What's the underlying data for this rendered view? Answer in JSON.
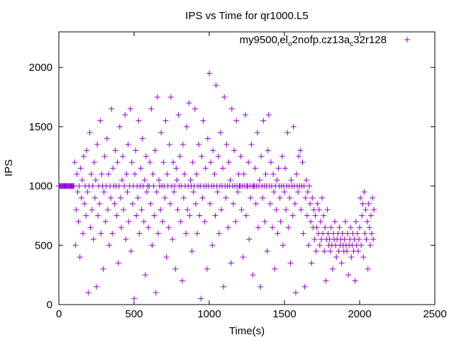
{
  "chart_data": {
    "type": "scatter",
    "title": "IPS vs Time for qr1000.L5",
    "xlabel": "Time(s)",
    "ylabel": "IPS",
    "xlim": [
      0,
      2500
    ],
    "ylim": [
      0,
      2300
    ],
    "xticks": [
      "0",
      "500",
      "1000",
      "1500",
      "2000",
      "2500"
    ],
    "xtick_values": [
      0,
      500,
      1000,
      1500,
      2000,
      2500
    ],
    "yticks": [
      "0",
      "500",
      "1000",
      "1500",
      "2000"
    ],
    "ytick_values": [
      0,
      500,
      1000,
      1500,
      2000
    ],
    "grid": false,
    "legend_position": "top-right",
    "series": [
      {
        "name": "my9500_rel_o2nofp.cz13a_c32r128",
        "legend_parts": [
          "my9500",
          "r",
          "el",
          "o",
          "2nofp.cz13a",
          "c",
          "32r128"
        ],
        "color": "#9400d3",
        "marker": "plus",
        "x_start": 0,
        "x_step": 5,
        "y": [
          1000,
          1000,
          1000,
          1000,
          1000,
          1000,
          1000,
          1000,
          1000,
          1000,
          1000,
          1000,
          1000,
          1000,
          1000,
          1000,
          1000,
          1000,
          1000,
          1000,
          1000,
          1200,
          500,
          800,
          1100,
          950,
          700,
          1000,
          400,
          1150,
          900,
          1050,
          600,
          1250,
          850,
          1000,
          750,
          1300,
          950,
          100,
          1000,
          1450,
          650,
          1100,
          800,
          1000,
          550,
          1200,
          900,
          1050,
          150,
          1350,
          750,
          1000,
          850,
          1550,
          600,
          1100,
          1000,
          300,
          950,
          1250,
          700,
          1000,
          1400,
          800,
          1100,
          500,
          1000,
          900,
          1650,
          600,
          1150,
          1000,
          850,
          1300,
          1000,
          750,
          1200,
          350,
          1000,
          1500,
          900,
          650,
          1050,
          1250,
          800,
          1000,
          1600,
          550,
          1100,
          950,
          1350,
          700,
          1000,
          1650,
          450,
          1200,
          850,
          1000,
          50,
          1100,
          1300,
          750,
          1000,
          900,
          1550,
          600,
          1000,
          1150,
          800,
          1400,
          1000,
          700,
          1050,
          250,
          1250,
          950,
          1000,
          650,
          1000,
          1200,
          850,
          1650,
          500,
          1100,
          1000,
          750,
          1300,
          100,
          950,
          1750,
          600,
          1050,
          1000,
          800,
          1450,
          1000,
          700,
          1200,
          1000,
          900,
          1550,
          400,
          1100,
          1000,
          650,
          1350,
          850,
          1750,
          1000,
          550,
          1200,
          950,
          1000,
          300,
          1150,
          1050,
          800,
          1600,
          1000,
          1250,
          700,
          1000,
          200,
          1350,
          900,
          1100,
          1000,
          600,
          1500,
          800,
          1000,
          1700,
          750,
          1050,
          1000,
          450,
          1200,
          950,
          1000,
          1650,
          850,
          1100,
          600,
          1000,
          1350,
          750,
          1000,
          50,
          1250,
          900,
          1550,
          1000,
          700,
          1150,
          1000,
          300,
          1400,
          1000,
          1950,
          850,
          1200,
          1000,
          500,
          1300,
          1000,
          1100,
          750,
          1850,
          1000,
          950,
          1250,
          600,
          1000,
          1450,
          800,
          1000,
          1150,
          150,
          1750,
          1000,
          900,
          1350,
          1000,
          650,
          1200,
          1000,
          1050,
          350,
          1650,
          1000,
          850,
          1300,
          1000,
          700,
          1550,
          1000,
          950,
          1100,
          1000,
          1000,
          1250,
          800,
          1000,
          400,
          1100,
          1000,
          1600,
          750,
          1000,
          1000,
          1200,
          550,
          1000,
          900,
          1350,
          1000,
          250,
          1000,
          1000,
          1150,
          850,
          1000,
          1450,
          650,
          1000,
          1050,
          150,
          1250,
          1000,
          900,
          1550,
          1000,
          700,
          1100,
          1000,
          450,
          1300,
          1600,
          1000,
          850,
          1200,
          1000,
          650,
          1100,
          950,
          300,
          1000,
          800,
          1050,
          600,
          1150,
          1000,
          900,
          700,
          1000,
          1250,
          500,
          1000,
          950,
          1150,
          800,
          1000,
          1450,
          650,
          1000,
          900,
          350,
          1050,
          1000,
          750,
          1500,
          1000,
          850,
          100,
          1100,
          1000,
          950,
          1250,
          1000,
          1300,
          800,
          1000,
          1200,
          600,
          1000,
          150,
          900,
          1050,
          750,
          950,
          500,
          1000,
          850,
          700,
          350,
          900,
          650,
          800,
          550,
          750,
          450,
          650,
          850,
          600,
          800,
          500,
          700,
          550,
          900,
          600,
          750,
          450,
          650,
          200,
          550,
          800,
          600,
          500,
          550,
          450,
          650,
          500,
          300,
          600,
          550,
          700,
          500,
          400,
          550,
          600,
          450,
          650,
          500,
          550,
          350,
          600,
          500,
          450,
          550,
          700,
          500,
          450,
          600,
          250,
          500,
          550,
          650,
          400,
          500,
          600,
          450,
          550,
          200,
          700,
          500,
          600,
          450,
          550,
          650,
          900,
          500,
          750,
          850,
          400,
          950,
          600,
          800,
          550,
          700,
          300,
          850,
          650,
          500,
          750,
          600,
          900,
          550,
          800
        ]
      }
    ]
  }
}
